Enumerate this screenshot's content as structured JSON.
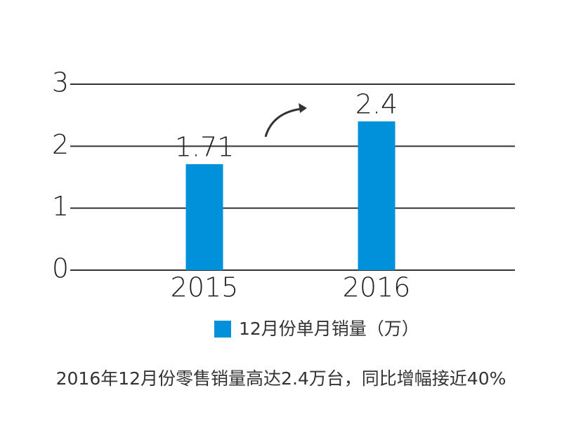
{
  "chart_data": {
    "type": "bar",
    "categories": [
      "2015",
      "2016"
    ],
    "values": [
      1.71,
      2.4
    ],
    "color": "#0091da",
    "ylim": [
      0,
      3
    ],
    "yticks": [
      0,
      1,
      2,
      3
    ],
    "grid": true,
    "legend": "12月份单月销量（万）",
    "caption": "2016年12月份零售销量高达2.4万台，同比增幅接近40%"
  }
}
